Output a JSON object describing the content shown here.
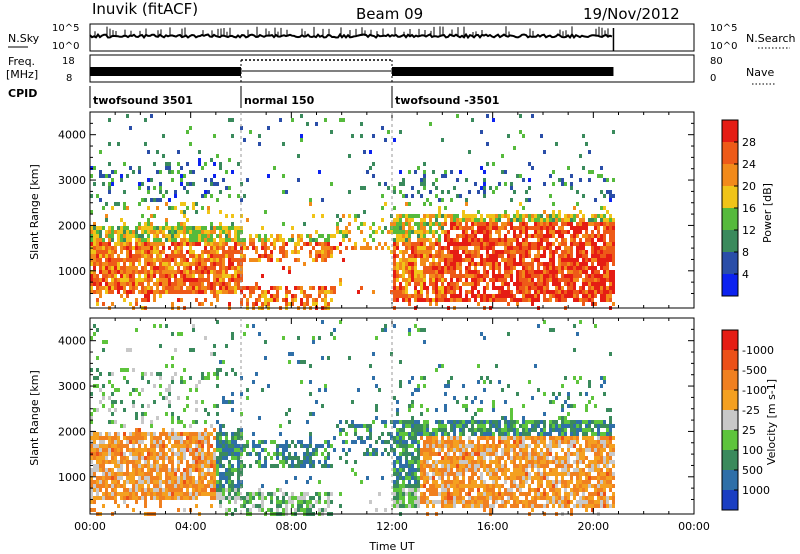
{
  "header": {
    "station": "Inuvik (fitACF)",
    "beam": "Beam 09",
    "date": "19/Nov/2012"
  },
  "nsky": {
    "label": "N.Sky",
    "tick_top": "10^5",
    "tick_bottom": "10^0"
  },
  "nsearch": {
    "label": "N.Search",
    "tick_top": "10^5",
    "tick_bottom": "10^0"
  },
  "freq": {
    "label_top": "Freq.",
    "label_bottom": "[MHz]",
    "tick_top": "18",
    "tick_bottom": "8"
  },
  "nave": {
    "label": "Nave",
    "tick_top": "80",
    "tick_bottom": "0"
  },
  "cpid": {
    "label": "CPID",
    "segments": [
      {
        "name": "twofsound 3501",
        "start_h": 0,
        "end_h": 6
      },
      {
        "name": "normal 150",
        "start_h": 6,
        "end_h": 12
      },
      {
        "name": "twofsound -3501",
        "start_h": 12,
        "end_h": 20.8
      }
    ]
  },
  "chart_data": [
    {
      "type": "heatmap",
      "quantity": "power",
      "ylabel": "Slant Range [km]",
      "xlabel": "Time UT",
      "xlim": [
        0,
        24
      ],
      "ylim": [
        180,
        4500
      ],
      "yticks": [
        "1000",
        "2000",
        "3000",
        "4000"
      ],
      "xticks": [
        "00:00",
        "04:00",
        "08:00",
        "12:00",
        "16:00",
        "20:00",
        "00:00"
      ],
      "data_end_h": 20.8,
      "colorbar": {
        "label": "Power [dB]",
        "ticks": [
          "4",
          "8",
          "12",
          "16",
          "20",
          "24",
          "28"
        ],
        "colors": [
          "#0c22f0",
          "#2a4ea8",
          "#3a8a5c",
          "#56ba3c",
          "#f0c418",
          "#f28a1a",
          "#ee5a18",
          "#e51c14"
        ]
      }
    },
    {
      "type": "heatmap",
      "quantity": "velocity",
      "ylabel": "Slant Range [km]",
      "xlabel": "Time UT",
      "xlim": [
        0,
        24
      ],
      "ylim": [
        180,
        4500
      ],
      "yticks": [
        "1000",
        "2000",
        "3000",
        "4000"
      ],
      "xticks": [
        "00:00",
        "04:00",
        "08:00",
        "12:00",
        "16:00",
        "20:00",
        "00:00"
      ],
      "data_end_h": 20.8,
      "colorbar": {
        "label": "Velocity [m s-1]",
        "ticks": [
          "1000",
          "500",
          "100",
          "25",
          "-25",
          "-100",
          "-500",
          "-1000"
        ],
        "colors": [
          "#1a3ec2",
          "#2f6fa8",
          "#3a8a5c",
          "#5ec43c",
          "#c8c8c8",
          "#f4a020",
          "#f08020",
          "#ec5018",
          "#e51c14"
        ]
      }
    }
  ]
}
